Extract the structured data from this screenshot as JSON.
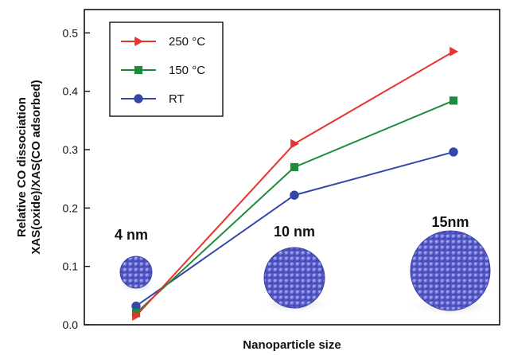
{
  "chart_data": {
    "type": "line",
    "x": [
      "4 nm",
      "10 nm",
      "15nm"
    ],
    "series": [
      {
        "name": "250 °C",
        "color": "#e8322b",
        "marker": "triangle-right",
        "values": [
          0.015,
          0.31,
          0.468
        ]
      },
      {
        "name": "150 °C",
        "color": "#1e8c3a",
        "marker": "square",
        "values": [
          0.02,
          0.27,
          0.384
        ]
      },
      {
        "name": "RT",
        "color": "#3446a8",
        "marker": "circle",
        "values": [
          0.032,
          0.222,
          0.296
        ]
      }
    ],
    "xlabel": "Nanoparticle size",
    "ylabel_line1": "Relative CO dissociation",
    "ylabel_line2": "XAS(oxide)/XAS(CO adsorbed)",
    "ylim": [
      0.0,
      0.54
    ],
    "yticks": [
      "0.0",
      "0.1",
      "0.2",
      "0.3",
      "0.4",
      "0.5"
    ],
    "legend_position": "top-left",
    "grid": false,
    "size_labels": [
      "4 nm",
      "10 nm",
      "15nm"
    ],
    "particle_color": "#5a5fcf"
  }
}
